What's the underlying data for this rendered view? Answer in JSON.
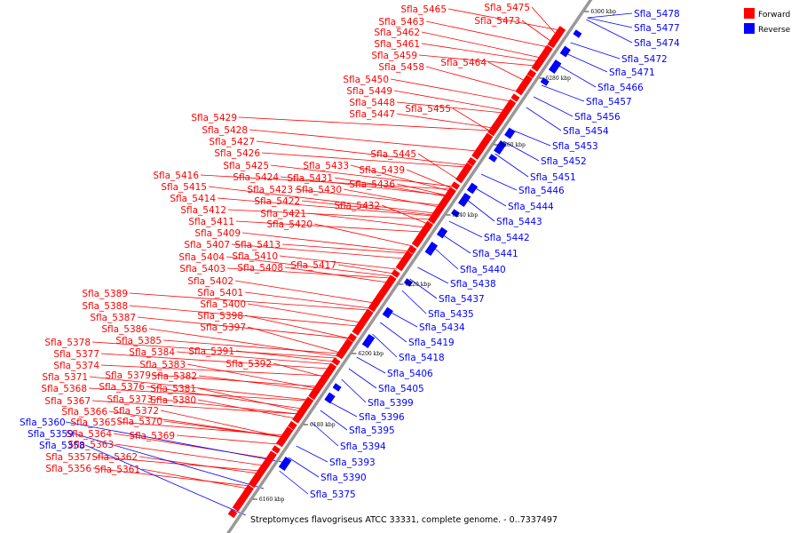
{
  "caption": "Streptomyces flavogriseus ATCC 33331, complete genome. - 0..7337497",
  "legend": [
    {
      "label": "Forward",
      "color": "#ff0000"
    },
    {
      "label": "Reverse",
      "color": "#0000ff"
    }
  ],
  "colors": {
    "forward": "#ff0000",
    "reverse": "#0000ff",
    "backbone": "#999999"
  },
  "ticks": [
    "6160 kbp",
    "6180 kbp",
    "6200 kbp",
    "6220 kbp",
    "6240 kbp",
    "6260 kbp",
    "6280 kbp",
    "6300 kbp"
  ],
  "forward_labels": [
    "Sfla_5475",
    "Sfla_5465",
    "Sfla_5473",
    "Sfla_5463",
    "Sfla_5462",
    "Sfla_5461",
    "Sfla_5459",
    "Sfla_5464",
    "Sfla_5458",
    "Sfla_5450",
    "Sfla_5449",
    "Sfla_5448",
    "Sfla_5455",
    "Sfla_5447",
    "Sfla_5429",
    "Sfla_5428",
    "Sfla_5427",
    "Sfla_5426",
    "Sfla_5445",
    "Sfla_5425",
    "Sfla_5433",
    "Sfla_5439",
    "Sfla_5416",
    "Sfla_5424",
    "Sfla_5431",
    "Sfla_5415",
    "Sfla_5423",
    "Sfla_5430",
    "Sfla_5436",
    "Sfla_5414",
    "Sfla_5422",
    "Sfla_5432",
    "Sfla_5412",
    "Sfla_5421",
    "Sfla_5411",
    "Sfla_5420",
    "Sfla_5409",
    "Sfla_5407",
    "Sfla_5413",
    "Sfla_5404",
    "Sfla_5410",
    "Sfla_5403",
    "Sfla_5408",
    "Sfla_5417",
    "Sfla_5402",
    "Sfla_5389",
    "Sfla_5401",
    "Sfla_5388",
    "Sfla_5400",
    "Sfla_5387",
    "Sfla_5398",
    "Sfla_5386",
    "Sfla_5397",
    "Sfla_5385",
    "Sfla_5378",
    "Sfla_5384",
    "Sfla_5391",
    "Sfla_5377",
    "Sfla_5383",
    "Sfla_5392",
    "Sfla_5374",
    "Sfla_5379",
    "Sfla_5382",
    "Sfla_5371",
    "Sfla_5376",
    "Sfla_5381",
    "Sfla_5368",
    "Sfla_5373",
    "Sfla_5380",
    "Sfla_5367",
    "Sfla_5366",
    "Sfla_5372",
    "Sfla_5365",
    "Sfla_5370",
    "Sfla_5364",
    "Sfla_5369",
    "Sfla_5363",
    "Sfla_5357",
    "Sfla_5362",
    "Sfla_5356",
    "Sfla_5361"
  ],
  "reverse_labels": [
    "Sfla_5478",
    "Sfla_5477",
    "Sfla_5474",
    "Sfla_5472",
    "Sfla_5471",
    "Sfla_5466",
    "Sfla_5457",
    "Sfla_5456",
    "Sfla_5454",
    "Sfla_5453",
    "Sfla_5452",
    "Sfla_5451",
    "Sfla_5446",
    "Sfla_5444",
    "Sfla_5443",
    "Sfla_5442",
    "Sfla_5441",
    "Sfla_5440",
    "Sfla_5438",
    "Sfla_5437",
    "Sfla_5435",
    "Sfla_5434",
    "Sfla_5419",
    "Sfla_5418",
    "Sfla_5406",
    "Sfla_5405",
    "Sfla_5399",
    "Sfla_5396",
    "Sfla_5395",
    "Sfla_5394",
    "Sfla_5393",
    "Sfla_5390",
    "Sfla_5375",
    "Sfla_5360",
    "Sfla_5359",
    "Sfla_5358"
  ]
}
